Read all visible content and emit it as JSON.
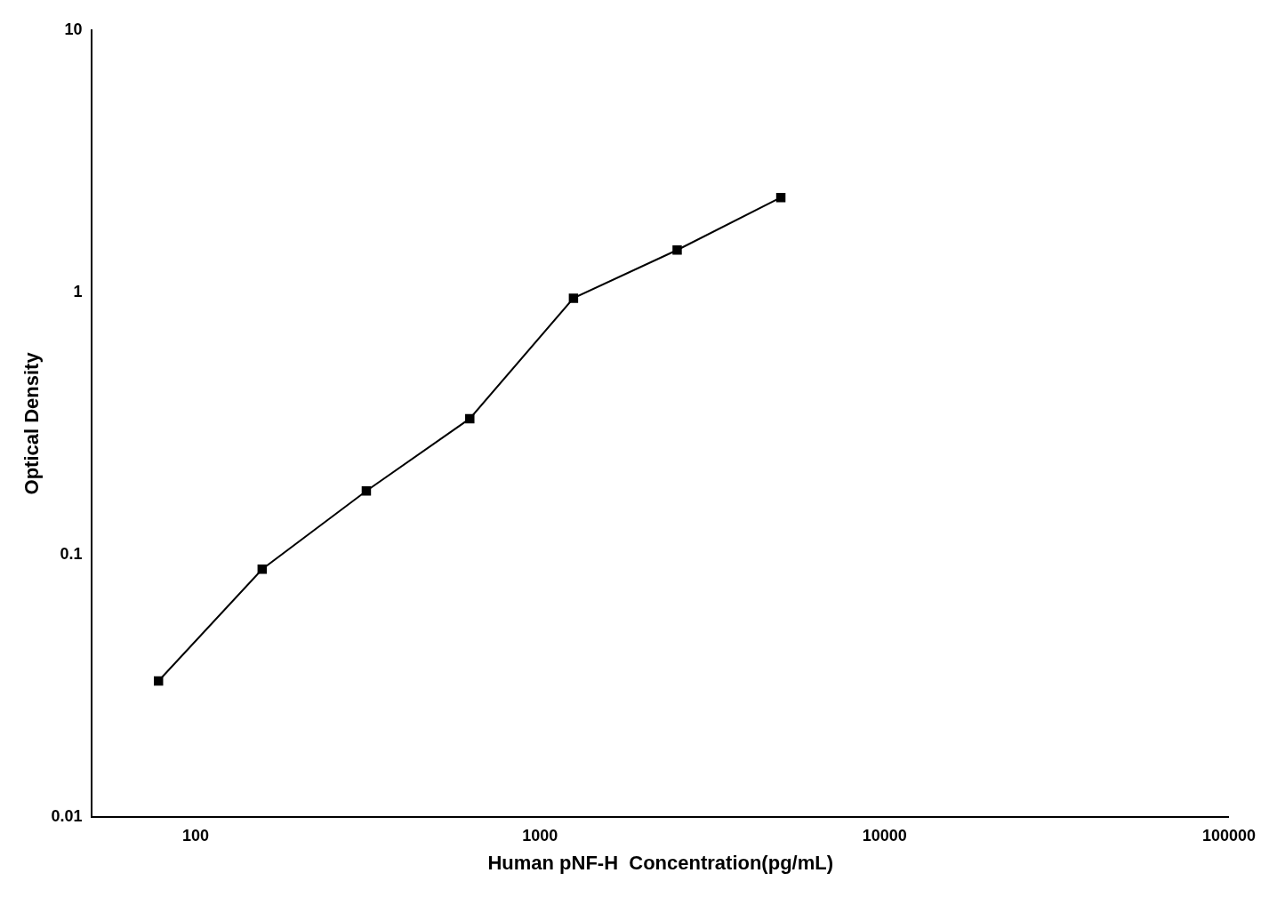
{
  "chart_data": {
    "type": "line",
    "x": [
      78,
      156,
      313,
      625,
      1250,
      2500,
      5000
    ],
    "values": [
      0.033,
      0.088,
      0.175,
      0.33,
      0.95,
      1.45,
      2.3
    ],
    "xlabel": "Human pNF-H  Concentration(pg/mL)",
    "ylabel": "Optical Density",
    "xlim": [
      50,
      100000
    ],
    "ylim": [
      0.01,
      10
    ],
    "xticks": [
      100,
      1000,
      10000,
      100000
    ],
    "yticks": [
      0.01,
      0.1,
      1,
      10
    ],
    "log": true,
    "grid": false,
    "color": "#000000",
    "marker": "square"
  }
}
